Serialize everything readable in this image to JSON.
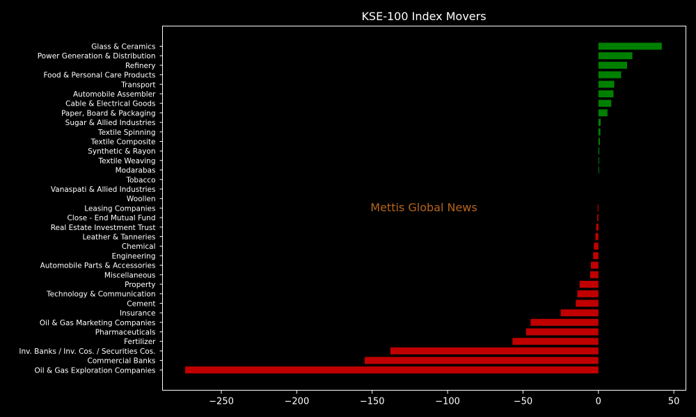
{
  "chart_data": {
    "type": "bar",
    "orientation": "horizontal",
    "title": "KSE-100 Index Movers",
    "watermark": "Mettis Global News",
    "xlabel": "",
    "ylabel": "",
    "xlim": [
      -289,
      58
    ],
    "xticks": [
      -250,
      -200,
      -150,
      -100,
      -50,
      0,
      50
    ],
    "xtick_labels": [
      "−250",
      "−200",
      "−150",
      "−100",
      "−50",
      "0",
      "50"
    ],
    "grid": false,
    "legend": "none",
    "colors": {
      "background": "#000000",
      "positive": "#008000",
      "negative": "#c00000",
      "text": "#ffffff",
      "axes": "#ffffff",
      "watermark": "#b5651d"
    },
    "categories": [
      "Glass & Ceramics",
      "Power Generation & Distribution",
      "Refinery",
      "Food & Personal Care Products",
      "Transport",
      "Automobile Assembler",
      "Cable & Electrical Goods",
      "Paper, Board & Packaging",
      "Sugar & Allied Industries",
      "Textile Spinning",
      "Textile Composite",
      "Synthetic & Rayon",
      "Textile Weaving",
      "Modarabas",
      "Tobacco",
      "Vanaspati & Allied Industries",
      "Woollen",
      "Leasing Companies",
      "Close - End Mutual Fund",
      "Real Estate Investment Trust",
      "Leather & Tanneries",
      "Chemical",
      "Engineering",
      "Automobile Parts & Accessories",
      "Miscellaneous",
      "Property",
      "Technology & Communication",
      "Cement",
      "Insurance",
      "Oil & Gas Marketing Companies",
      "Pharmaceuticals",
      "Fertilizer",
      "Inv. Banks / Inv. Cos. / Securities Cos.",
      "Commercial Banks",
      "Oil & Gas Exploration Companies"
    ],
    "values": [
      42,
      22.5,
      19,
      15,
      10.5,
      10,
      8.5,
      6,
      1.5,
      1.3,
      1,
      0.6,
      0.5,
      0.4,
      0,
      0,
      0,
      -0.5,
      -0.8,
      -1.5,
      -2,
      -3,
      -3.5,
      -5,
      -5.5,
      -12.5,
      -14,
      -15,
      -25,
      -45,
      -48,
      -57,
      -138,
      -155,
      -274
    ]
  }
}
